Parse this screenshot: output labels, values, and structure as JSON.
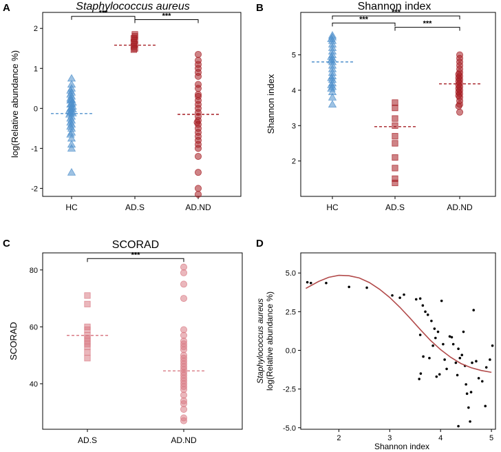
{
  "colors": {
    "blue": "#4f90cc",
    "red": "#a51d23",
    "pink": "#d97b85",
    "curve": "#b24a4a"
  },
  "chart_data": [
    {
      "panel": "A",
      "type": "scatter",
      "title": "Staphylococcus aureus",
      "title_italic": true,
      "xlabel": "",
      "ylabel": "log(Relative abundance %)",
      "categories": [
        "HC",
        "AD.S",
        "AD.ND"
      ],
      "ylim": [
        -2.2,
        2.4
      ],
      "yticks": [
        -2,
        -1,
        0,
        1,
        2
      ],
      "series": [
        {
          "name": "HC",
          "marker": "triangle",
          "color": "blue",
          "mean": -0.13,
          "values": [
            0.75,
            0.6,
            0.5,
            0.45,
            0.4,
            0.35,
            0.3,
            0.25,
            0.22,
            0.2,
            0.15,
            0.12,
            0.1,
            0.05,
            0.02,
            0.0,
            -0.02,
            -0.05,
            -0.08,
            -0.1,
            -0.12,
            -0.15,
            -0.2,
            -0.25,
            -0.3,
            -0.35,
            -0.4,
            -0.45,
            -0.5,
            -0.6,
            -0.65,
            -0.75,
            -0.9,
            -1.0,
            -1.6
          ]
        },
        {
          "name": "AD.S",
          "marker": "square",
          "color": "red",
          "mean": 1.58,
          "values": [
            1.85,
            1.8,
            1.75,
            1.7,
            1.65,
            1.6,
            1.55,
            1.5,
            1.47
          ]
        },
        {
          "name": "AD.ND",
          "marker": "circle",
          "color": "red",
          "mean": -0.15,
          "values": [
            1.35,
            1.2,
            1.1,
            1.0,
            0.9,
            0.8,
            0.6,
            0.5,
            0.35,
            0.3,
            0.2,
            0.1,
            0.0,
            -0.1,
            -0.2,
            -0.3,
            -0.35,
            -0.4,
            -0.5,
            -0.6,
            -0.7,
            -0.8,
            -0.9,
            -1.0,
            -1.2,
            -1.6,
            -2.0,
            -2.15
          ]
        }
      ],
      "significance": [
        {
          "from": 0,
          "to": 1,
          "label": "***",
          "y": 2.3
        },
        {
          "from": 1,
          "to": 2,
          "label": "***",
          "y": 2.22
        }
      ]
    },
    {
      "panel": "B",
      "type": "scatter",
      "title": "Shannon index",
      "title_italic": false,
      "xlabel": "",
      "ylabel": "Shannon index",
      "categories": [
        "HC",
        "AD.S",
        "AD.ND"
      ],
      "ylim": [
        1.0,
        6.2
      ],
      "yticks": [
        2,
        3,
        4,
        5
      ],
      "series": [
        {
          "name": "HC",
          "marker": "triangle",
          "color": "blue",
          "mean": 4.8,
          "values": [
            5.55,
            5.5,
            5.45,
            5.4,
            5.3,
            5.2,
            5.1,
            5.0,
            4.95,
            4.9,
            4.85,
            4.8,
            4.7,
            4.6,
            4.5,
            4.4,
            4.35,
            4.3,
            4.2,
            4.15,
            4.1,
            4.05,
            3.95,
            3.8,
            3.6
          ]
        },
        {
          "name": "AD.S",
          "marker": "square",
          "color": "red",
          "mean": 2.97,
          "values": [
            3.65,
            3.5,
            3.2,
            3.0,
            2.7,
            2.5,
            2.1,
            1.8,
            1.5,
            1.38
          ]
        },
        {
          "name": "AD.ND",
          "marker": "circle",
          "color": "red",
          "mean": 4.18,
          "values": [
            5.0,
            4.9,
            4.8,
            4.7,
            4.6,
            4.5,
            4.45,
            4.4,
            4.35,
            4.3,
            4.25,
            4.2,
            4.15,
            4.1,
            4.05,
            4.0,
            3.95,
            3.9,
            3.85,
            3.8,
            3.7,
            3.6,
            3.55,
            3.38
          ]
        }
      ],
      "significance": [
        {
          "from": 0,
          "to": 2,
          "label": "***",
          "y": 6.1
        },
        {
          "from": 0,
          "to": 1,
          "label": "***",
          "y": 5.9
        },
        {
          "from": 1,
          "to": 2,
          "label": "***",
          "y": 5.78
        }
      ]
    },
    {
      "panel": "C",
      "type": "scatter",
      "title": "SCORAD",
      "title_italic": false,
      "xlabel": "",
      "ylabel": "SCORAD",
      "categories": [
        "AD.S",
        "AD.ND"
      ],
      "ylim": [
        24,
        86
      ],
      "yticks": [
        40,
        60,
        80
      ],
      "series": [
        {
          "name": "AD.S",
          "marker": "square",
          "color": "pink",
          "mean": 57,
          "values": [
            71,
            68,
            60,
            59,
            57,
            56,
            55,
            54,
            53,
            51,
            49
          ]
        },
        {
          "name": "AD.ND",
          "marker": "circle",
          "color": "pink",
          "mean": 44.5,
          "values": [
            81,
            79,
            75,
            70,
            59,
            57,
            55,
            54,
            53,
            52,
            50,
            49,
            48,
            47,
            46,
            45,
            44,
            43,
            42,
            41,
            40,
            39,
            38,
            36,
            34,
            33,
            31,
            28,
            27
          ]
        }
      ],
      "significance": [
        {
          "from": 0,
          "to": 1,
          "label": "***",
          "y": 84
        }
      ]
    },
    {
      "panel": "D",
      "type": "scatter",
      "title": "",
      "title_italic": false,
      "xlabel": "Shannon index",
      "ylabel": "log(Relative abundance %)",
      "ylabel_top": "Staphylococcus aureus",
      "xlim": [
        1.25,
        5.08
      ],
      "ylim": [
        -5.1,
        6.3
      ],
      "xticks": [
        2,
        3,
        4,
        5
      ],
      "yticks": [
        -5.0,
        -2.5,
        0.0,
        2.5,
        5.0
      ],
      "ytick_labels": [
        "-5.0",
        "-2.5",
        "0.0",
        "2.5",
        "5.0"
      ],
      "points": [
        [
          1.38,
          4.4
        ],
        [
          1.45,
          4.35
        ],
        [
          1.75,
          4.35
        ],
        [
          2.2,
          4.1
        ],
        [
          2.55,
          4.05
        ],
        [
          3.05,
          3.55
        ],
        [
          3.2,
          3.4
        ],
        [
          3.28,
          3.6
        ],
        [
          3.52,
          3.3
        ],
        [
          3.6,
          3.35
        ],
        [
          3.65,
          2.9
        ],
        [
          3.7,
          2.5
        ],
        [
          3.75,
          2.3
        ],
        [
          3.82,
          1.9
        ],
        [
          3.88,
          1.4
        ],
        [
          3.95,
          1.2
        ],
        [
          3.9,
          0.8
        ],
        [
          3.6,
          1.0
        ],
        [
          3.66,
          -0.4
        ],
        [
          3.61,
          -1.5
        ],
        [
          3.58,
          -1.85
        ],
        [
          3.78,
          -0.5
        ],
        [
          3.85,
          0.3
        ],
        [
          3.92,
          -1.7
        ],
        [
          3.98,
          -1.55
        ],
        [
          4.02,
          3.2
        ],
        [
          4.05,
          0.4
        ],
        [
          4.08,
          -0.6
        ],
        [
          4.12,
          -1.2
        ],
        [
          4.18,
          0.9
        ],
        [
          4.22,
          0.85
        ],
        [
          4.25,
          0.4
        ],
        [
          4.3,
          -0.8
        ],
        [
          4.33,
          -1.6
        ],
        [
          4.35,
          0.1
        ],
        [
          4.38,
          -0.5
        ],
        [
          4.42,
          -0.3
        ],
        [
          4.45,
          1.2
        ],
        [
          4.48,
          -1.0
        ],
        [
          4.5,
          -2.2
        ],
        [
          4.52,
          -2.8
        ],
        [
          4.55,
          -3.7
        ],
        [
          4.58,
          -4.6
        ],
        [
          4.6,
          -2.7
        ],
        [
          4.62,
          -0.8
        ],
        [
          4.65,
          2.6
        ],
        [
          4.7,
          -0.7
        ],
        [
          4.75,
          -1.8
        ],
        [
          4.82,
          -2.0
        ],
        [
          4.88,
          -3.6
        ],
        [
          4.9,
          -1.1
        ],
        [
          4.97,
          -0.6
        ],
        [
          5.02,
          0.3
        ],
        [
          4.35,
          -4.9
        ]
      ],
      "fit_curve": [
        [
          1.35,
          4.0
        ],
        [
          1.6,
          4.45
        ],
        [
          1.8,
          4.72
        ],
        [
          2.0,
          4.85
        ],
        [
          2.2,
          4.82
        ],
        [
          2.4,
          4.68
        ],
        [
          2.6,
          4.38
        ],
        [
          2.8,
          3.95
        ],
        [
          3.0,
          3.42
        ],
        [
          3.2,
          2.78
        ],
        [
          3.4,
          2.08
        ],
        [
          3.6,
          1.35
        ],
        [
          3.8,
          0.65
        ],
        [
          4.0,
          0.05
        ],
        [
          4.2,
          -0.45
        ],
        [
          4.4,
          -0.85
        ],
        [
          4.6,
          -1.12
        ],
        [
          4.8,
          -1.3
        ],
        [
          5.0,
          -1.42
        ]
      ]
    }
  ],
  "panels": {
    "a": {
      "letter": "A",
      "title": "Staphylococcus aureus",
      "ylabel": "log(Relative abundance %)"
    },
    "b": {
      "letter": "B",
      "title": "Shannon index",
      "ylabel": "Shannon index"
    },
    "c": {
      "letter": "C",
      "title": "SCORAD",
      "ylabel": "SCORAD"
    },
    "d": {
      "letter": "D",
      "ylabel_top": "Staphylococcus aureus",
      "ylabel": "log(Relative abundance %)",
      "xlabel": "Shannon index"
    }
  }
}
